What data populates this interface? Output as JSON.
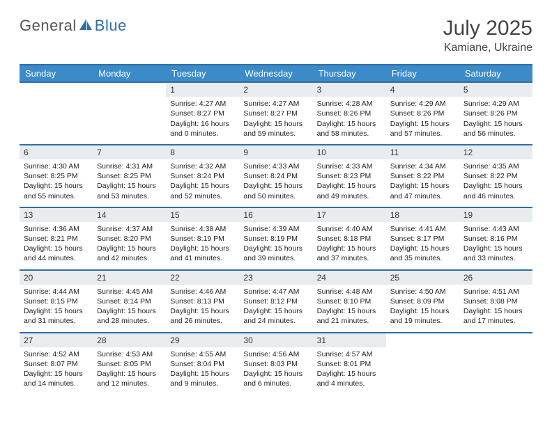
{
  "logo": {
    "text_general": "General",
    "text_blue": "Blue"
  },
  "title": "July 2025",
  "location": "Kamiane, Ukraine",
  "colors": {
    "header_bg": "#3b8bc9",
    "rule": "#2f6fa8",
    "daynum_bg": "#e9ecee",
    "text": "#222222",
    "logo_gray": "#555555",
    "logo_blue": "#2f6fa8"
  },
  "weekdays": [
    "Sunday",
    "Monday",
    "Tuesday",
    "Wednesday",
    "Thursday",
    "Friday",
    "Saturday"
  ],
  "weeks": [
    [
      {
        "day": "",
        "sunrise": "",
        "sunset": "",
        "daylight1": "",
        "daylight2": ""
      },
      {
        "day": "",
        "sunrise": "",
        "sunset": "",
        "daylight1": "",
        "daylight2": ""
      },
      {
        "day": "1",
        "sunrise": "Sunrise: 4:27 AM",
        "sunset": "Sunset: 8:27 PM",
        "daylight1": "Daylight: 16 hours",
        "daylight2": "and 0 minutes."
      },
      {
        "day": "2",
        "sunrise": "Sunrise: 4:27 AM",
        "sunset": "Sunset: 8:27 PM",
        "daylight1": "Daylight: 15 hours",
        "daylight2": "and 59 minutes."
      },
      {
        "day": "3",
        "sunrise": "Sunrise: 4:28 AM",
        "sunset": "Sunset: 8:26 PM",
        "daylight1": "Daylight: 15 hours",
        "daylight2": "and 58 minutes."
      },
      {
        "day": "4",
        "sunrise": "Sunrise: 4:29 AM",
        "sunset": "Sunset: 8:26 PM",
        "daylight1": "Daylight: 15 hours",
        "daylight2": "and 57 minutes."
      },
      {
        "day": "5",
        "sunrise": "Sunrise: 4:29 AM",
        "sunset": "Sunset: 8:26 PM",
        "daylight1": "Daylight: 15 hours",
        "daylight2": "and 56 minutes."
      }
    ],
    [
      {
        "day": "6",
        "sunrise": "Sunrise: 4:30 AM",
        "sunset": "Sunset: 8:25 PM",
        "daylight1": "Daylight: 15 hours",
        "daylight2": "and 55 minutes."
      },
      {
        "day": "7",
        "sunrise": "Sunrise: 4:31 AM",
        "sunset": "Sunset: 8:25 PM",
        "daylight1": "Daylight: 15 hours",
        "daylight2": "and 53 minutes."
      },
      {
        "day": "8",
        "sunrise": "Sunrise: 4:32 AM",
        "sunset": "Sunset: 8:24 PM",
        "daylight1": "Daylight: 15 hours",
        "daylight2": "and 52 minutes."
      },
      {
        "day": "9",
        "sunrise": "Sunrise: 4:33 AM",
        "sunset": "Sunset: 8:24 PM",
        "daylight1": "Daylight: 15 hours",
        "daylight2": "and 50 minutes."
      },
      {
        "day": "10",
        "sunrise": "Sunrise: 4:33 AM",
        "sunset": "Sunset: 8:23 PM",
        "daylight1": "Daylight: 15 hours",
        "daylight2": "and 49 minutes."
      },
      {
        "day": "11",
        "sunrise": "Sunrise: 4:34 AM",
        "sunset": "Sunset: 8:22 PM",
        "daylight1": "Daylight: 15 hours",
        "daylight2": "and 47 minutes."
      },
      {
        "day": "12",
        "sunrise": "Sunrise: 4:35 AM",
        "sunset": "Sunset: 8:22 PM",
        "daylight1": "Daylight: 15 hours",
        "daylight2": "and 46 minutes."
      }
    ],
    [
      {
        "day": "13",
        "sunrise": "Sunrise: 4:36 AM",
        "sunset": "Sunset: 8:21 PM",
        "daylight1": "Daylight: 15 hours",
        "daylight2": "and 44 minutes."
      },
      {
        "day": "14",
        "sunrise": "Sunrise: 4:37 AM",
        "sunset": "Sunset: 8:20 PM",
        "daylight1": "Daylight: 15 hours",
        "daylight2": "and 42 minutes."
      },
      {
        "day": "15",
        "sunrise": "Sunrise: 4:38 AM",
        "sunset": "Sunset: 8:19 PM",
        "daylight1": "Daylight: 15 hours",
        "daylight2": "and 41 minutes."
      },
      {
        "day": "16",
        "sunrise": "Sunrise: 4:39 AM",
        "sunset": "Sunset: 8:19 PM",
        "daylight1": "Daylight: 15 hours",
        "daylight2": "and 39 minutes."
      },
      {
        "day": "17",
        "sunrise": "Sunrise: 4:40 AM",
        "sunset": "Sunset: 8:18 PM",
        "daylight1": "Daylight: 15 hours",
        "daylight2": "and 37 minutes."
      },
      {
        "day": "18",
        "sunrise": "Sunrise: 4:41 AM",
        "sunset": "Sunset: 8:17 PM",
        "daylight1": "Daylight: 15 hours",
        "daylight2": "and 35 minutes."
      },
      {
        "day": "19",
        "sunrise": "Sunrise: 4:43 AM",
        "sunset": "Sunset: 8:16 PM",
        "daylight1": "Daylight: 15 hours",
        "daylight2": "and 33 minutes."
      }
    ],
    [
      {
        "day": "20",
        "sunrise": "Sunrise: 4:44 AM",
        "sunset": "Sunset: 8:15 PM",
        "daylight1": "Daylight: 15 hours",
        "daylight2": "and 31 minutes."
      },
      {
        "day": "21",
        "sunrise": "Sunrise: 4:45 AM",
        "sunset": "Sunset: 8:14 PM",
        "daylight1": "Daylight: 15 hours",
        "daylight2": "and 28 minutes."
      },
      {
        "day": "22",
        "sunrise": "Sunrise: 4:46 AM",
        "sunset": "Sunset: 8:13 PM",
        "daylight1": "Daylight: 15 hours",
        "daylight2": "and 26 minutes."
      },
      {
        "day": "23",
        "sunrise": "Sunrise: 4:47 AM",
        "sunset": "Sunset: 8:12 PM",
        "daylight1": "Daylight: 15 hours",
        "daylight2": "and 24 minutes."
      },
      {
        "day": "24",
        "sunrise": "Sunrise: 4:48 AM",
        "sunset": "Sunset: 8:10 PM",
        "daylight1": "Daylight: 15 hours",
        "daylight2": "and 21 minutes."
      },
      {
        "day": "25",
        "sunrise": "Sunrise: 4:50 AM",
        "sunset": "Sunset: 8:09 PM",
        "daylight1": "Daylight: 15 hours",
        "daylight2": "and 19 minutes."
      },
      {
        "day": "26",
        "sunrise": "Sunrise: 4:51 AM",
        "sunset": "Sunset: 8:08 PM",
        "daylight1": "Daylight: 15 hours",
        "daylight2": "and 17 minutes."
      }
    ],
    [
      {
        "day": "27",
        "sunrise": "Sunrise: 4:52 AM",
        "sunset": "Sunset: 8:07 PM",
        "daylight1": "Daylight: 15 hours",
        "daylight2": "and 14 minutes."
      },
      {
        "day": "28",
        "sunrise": "Sunrise: 4:53 AM",
        "sunset": "Sunset: 8:05 PM",
        "daylight1": "Daylight: 15 hours",
        "daylight2": "and 12 minutes."
      },
      {
        "day": "29",
        "sunrise": "Sunrise: 4:55 AM",
        "sunset": "Sunset: 8:04 PM",
        "daylight1": "Daylight: 15 hours",
        "daylight2": "and 9 minutes."
      },
      {
        "day": "30",
        "sunrise": "Sunrise: 4:56 AM",
        "sunset": "Sunset: 8:03 PM",
        "daylight1": "Daylight: 15 hours",
        "daylight2": "and 6 minutes."
      },
      {
        "day": "31",
        "sunrise": "Sunrise: 4:57 AM",
        "sunset": "Sunset: 8:01 PM",
        "daylight1": "Daylight: 15 hours",
        "daylight2": "and 4 minutes."
      },
      {
        "day": "",
        "sunrise": "",
        "sunset": "",
        "daylight1": "",
        "daylight2": ""
      },
      {
        "day": "",
        "sunrise": "",
        "sunset": "",
        "daylight1": "",
        "daylight2": ""
      }
    ]
  ]
}
